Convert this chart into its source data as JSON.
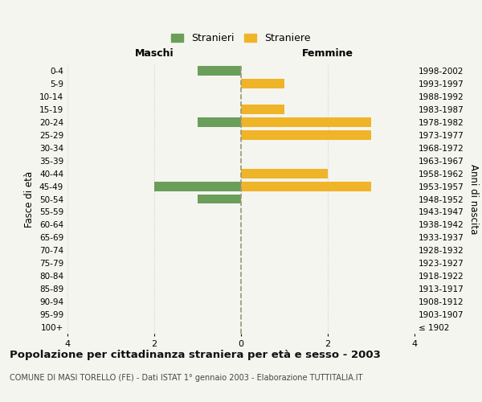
{
  "age_groups": [
    "100+",
    "95-99",
    "90-94",
    "85-89",
    "80-84",
    "75-79",
    "70-74",
    "65-69",
    "60-64",
    "55-59",
    "50-54",
    "45-49",
    "40-44",
    "35-39",
    "30-34",
    "25-29",
    "20-24",
    "15-19",
    "10-14",
    "5-9",
    "0-4"
  ],
  "birth_years": [
    "≤ 1902",
    "1903-1907",
    "1908-1912",
    "1913-1917",
    "1918-1922",
    "1923-1927",
    "1928-1932",
    "1933-1937",
    "1938-1942",
    "1943-1947",
    "1948-1952",
    "1953-1957",
    "1958-1962",
    "1963-1967",
    "1968-1972",
    "1973-1977",
    "1978-1982",
    "1983-1987",
    "1988-1992",
    "1993-1997",
    "1998-2002"
  ],
  "maschi": [
    0,
    0,
    0,
    0,
    0,
    0,
    0,
    0,
    0,
    0,
    1,
    2,
    0,
    0,
    0,
    0,
    1,
    0,
    0,
    0,
    1
  ],
  "femmine": [
    0,
    0,
    0,
    0,
    0,
    0,
    0,
    0,
    0,
    0,
    0,
    3,
    2,
    0,
    0,
    3,
    3,
    1,
    0,
    1,
    0
  ],
  "color_maschi": "#6a9e5a",
  "color_femmine": "#f0b429",
  "xlim": 4,
  "title": "Popolazione per cittadinanza straniera per età e sesso - 2003",
  "subtitle": "COMUNE DI MASI TORELLO (FE) - Dati ISTAT 1° gennaio 2003 - Elaborazione TUTTITALIA.IT",
  "ylabel_left": "Fasce di età",
  "ylabel_right": "Anni di nascita",
  "label_maschi": "Stranieri",
  "label_femmine": "Straniere",
  "bg_color": "#f5f5f0",
  "grid_color": "#cccccc",
  "bar_height": 0.75
}
